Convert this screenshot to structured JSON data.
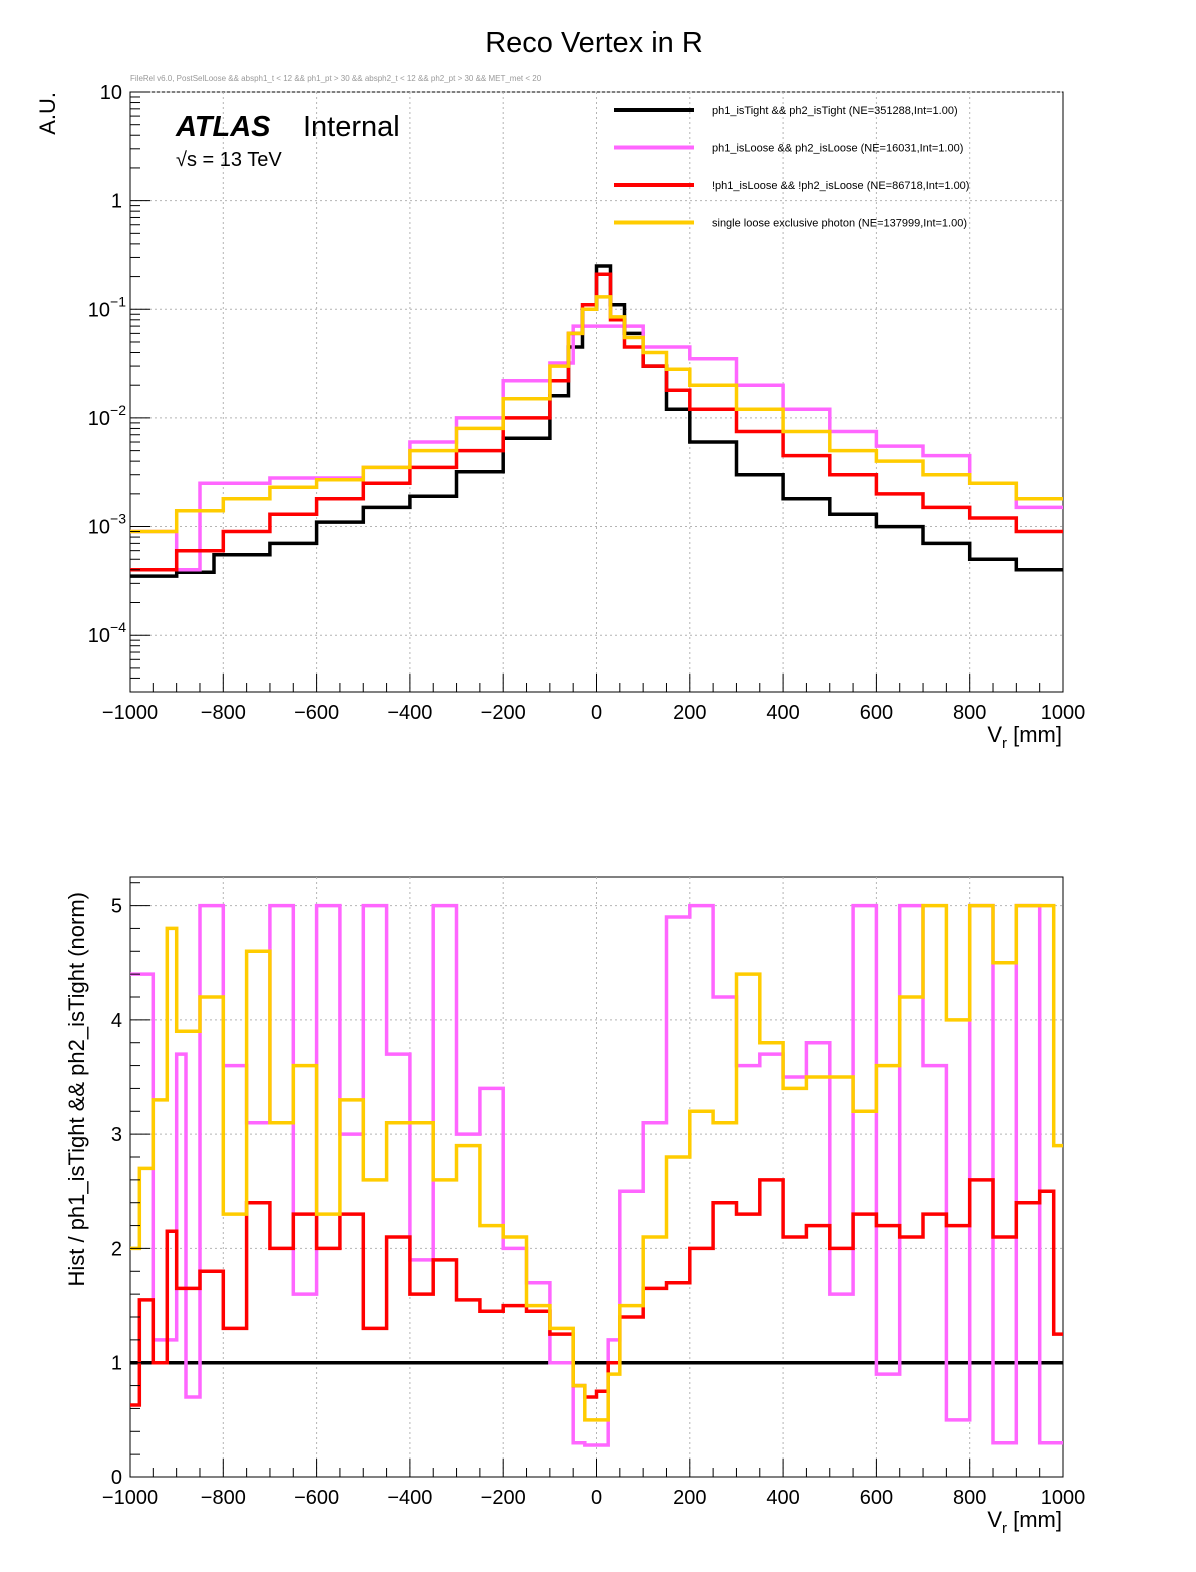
{
  "title": "Reco Vertex in R",
  "selection_note": "FileRel v6.0, PostSelLoose && absph1_t < 12 && ph1_pt > 30 && absph2_t < 12 && ph2_pt > 30 && MET_met < 20",
  "atlas_label": "ATLAS",
  "atlas_status": "Internal",
  "energy_label": "√s = 13 TeV",
  "colors": {
    "tight": "#000000",
    "loose": "#ff66ff",
    "notloose": "#ff0000",
    "single": "#ffcc00"
  },
  "chart_data": [
    {
      "type": "line",
      "scale": "log",
      "title": "Reco Vertex in R",
      "xlabel": "V_r [mm]",
      "ylabel": "A.U.",
      "xlim": [
        -1000,
        1000
      ],
      "ylim": [
        3e-05,
        10
      ],
      "grid": true,
      "legend_position": "top-right",
      "x_ticks": [
        "−1000",
        "−800",
        "−600",
        "−400",
        "−200",
        "0",
        "200",
        "400",
        "600",
        "800",
        "1000"
      ],
      "y_ticks": [
        {
          "base": "10",
          "exp": "−4"
        },
        {
          "base": "10",
          "exp": "−3"
        },
        {
          "base": "10",
          "exp": "−2"
        },
        {
          "base": "10",
          "exp": "−1"
        },
        {
          "base": "1",
          "exp": ""
        },
        {
          "base": "10",
          "exp": ""
        }
      ],
      "series": [
        {
          "name": "ph1_isTight && ph2_isTight (NE=351288,Int=1.00)",
          "color_key": "tight",
          "edges": [
            -1000,
            -900,
            -820,
            -700,
            -600,
            -500,
            -400,
            -300,
            -200,
            -100,
            -60,
            -30,
            0,
            30,
            60,
            100,
            150,
            200,
            300,
            400,
            500,
            600,
            700,
            800,
            900,
            1000
          ],
          "values": [
            0.00035,
            0.00038,
            0.00055,
            0.0007,
            0.0011,
            0.0015,
            0.0019,
            0.0032,
            0.0065,
            0.016,
            0.045,
            0.1,
            0.25,
            0.11,
            0.06,
            0.03,
            0.012,
            0.006,
            0.003,
            0.0018,
            0.0013,
            0.001,
            0.0007,
            0.0005,
            0.0004
          ]
        },
        {
          "name": "ph1_isLoose && ph2_isLoose (NE=16031,Int=1.00)",
          "color_key": "loose",
          "edges": [
            -1000,
            -900,
            -850,
            -700,
            -600,
            -500,
            -400,
            -300,
            -200,
            -100,
            -50,
            50,
            100,
            200,
            300,
            400,
            500,
            600,
            700,
            800,
            900,
            1000
          ],
          "values": [
            0.0009,
            0.0004,
            0.0025,
            0.0028,
            0.0028,
            0.0035,
            0.006,
            0.01,
            0.022,
            0.032,
            0.07,
            0.07,
            0.045,
            0.035,
            0.02,
            0.012,
            0.0075,
            0.0055,
            0.0045,
            0.0025,
            0.0015
          ]
        },
        {
          "name": "!ph1_isLoose && !ph2_isLoose (NE=86718,Int=1.00)",
          "color_key": "notloose",
          "edges": [
            -1000,
            -900,
            -800,
            -700,
            -600,
            -500,
            -400,
            -300,
            -200,
            -100,
            -60,
            -30,
            0,
            30,
            60,
            100,
            150,
            200,
            300,
            400,
            500,
            600,
            700,
            800,
            900,
            1000
          ],
          "values": [
            0.0004,
            0.0006,
            0.0009,
            0.0013,
            0.0018,
            0.0025,
            0.0035,
            0.005,
            0.01,
            0.022,
            0.06,
            0.11,
            0.21,
            0.08,
            0.045,
            0.03,
            0.018,
            0.012,
            0.0075,
            0.0045,
            0.003,
            0.002,
            0.0015,
            0.0012,
            0.0009
          ]
        },
        {
          "name": "single loose exclusive photon (NE=137999,Int=1.00)",
          "color_key": "single",
          "edges": [
            -1000,
            -900,
            -800,
            -700,
            -600,
            -500,
            -400,
            -300,
            -200,
            -100,
            -60,
            -30,
            0,
            30,
            60,
            100,
            150,
            200,
            300,
            400,
            500,
            600,
            700,
            800,
            900,
            1000
          ],
          "values": [
            0.0009,
            0.0014,
            0.0018,
            0.0023,
            0.0027,
            0.0035,
            0.005,
            0.008,
            0.015,
            0.03,
            0.06,
            0.1,
            0.13,
            0.085,
            0.055,
            0.04,
            0.028,
            0.02,
            0.012,
            0.0075,
            0.005,
            0.004,
            0.003,
            0.0025,
            0.0018
          ]
        }
      ]
    },
    {
      "type": "line",
      "xlabel": "V_r [mm]",
      "ylabel": "Hist / ph1_isTight && ph2_isTight (norm)",
      "xlim": [
        -1000,
        1000
      ],
      "ylim": [
        0,
        5.25
      ],
      "grid": true,
      "x_ticks": [
        "−1000",
        "−800",
        "−600",
        "−400",
        "−200",
        "0",
        "200",
        "400",
        "600",
        "800",
        "1000"
      ],
      "y_ticks": [
        "0",
        "1",
        "2",
        "3",
        "4",
        "5"
      ],
      "series": [
        {
          "name": "ph1_isTight && ph2_isTight",
          "color_key": "tight",
          "edges": [
            -1000,
            1000
          ],
          "values": [
            1.0
          ]
        },
        {
          "name": "ph1_isLoose && ph2_isLoose",
          "color_key": "loose",
          "edges": [
            -1000,
            -950,
            -900,
            -880,
            -850,
            -800,
            -750,
            -700,
            -650,
            -600,
            -550,
            -500,
            -450,
            -400,
            -350,
            -300,
            -250,
            -200,
            -150,
            -100,
            -50,
            -25,
            0,
            25,
            50,
            100,
            150,
            200,
            250,
            300,
            350,
            400,
            450,
            500,
            550,
            600,
            650,
            700,
            750,
            800,
            850,
            900,
            950,
            1000
          ],
          "values": [
            4.4,
            1.2,
            3.7,
            0.7,
            5.0,
            3.6,
            3.1,
            5.0,
            1.6,
            5.0,
            3.0,
            5.0,
            3.7,
            1.9,
            5.0,
            3.0,
            3.4,
            2.0,
            1.7,
            1.0,
            0.3,
            0.28,
            0.28,
            1.2,
            2.5,
            3.1,
            4.9,
            5.0,
            4.2,
            3.6,
            3.7,
            3.5,
            3.8,
            1.6,
            5.0,
            0.9,
            5.0,
            3.6,
            0.5,
            5.0,
            0.3,
            5.0,
            0.3
          ]
        },
        {
          "name": "!ph1_isLoose && !ph2_isLoose",
          "color_key": "notloose",
          "edges": [
            -1000,
            -980,
            -950,
            -920,
            -900,
            -850,
            -800,
            -750,
            -700,
            -650,
            -600,
            -550,
            -500,
            -450,
            -400,
            -350,
            -300,
            -250,
            -200,
            -150,
            -100,
            -50,
            -25,
            0,
            25,
            50,
            100,
            150,
            200,
            250,
            300,
            350,
            400,
            450,
            500,
            550,
            600,
            650,
            700,
            750,
            800,
            850,
            900,
            950,
            980,
            1000
          ],
          "values": [
            0.63,
            1.55,
            1.0,
            2.15,
            1.65,
            1.8,
            1.3,
            2.4,
            2.0,
            2.3,
            2.0,
            2.3,
            1.3,
            2.1,
            1.6,
            1.9,
            1.55,
            1.45,
            1.5,
            1.45,
            1.25,
            0.8,
            0.7,
            0.75,
            1.0,
            1.4,
            1.65,
            1.7,
            2.0,
            2.4,
            2.3,
            2.6,
            2.1,
            2.2,
            2.0,
            2.3,
            2.2,
            2.1,
            2.3,
            2.2,
            2.6,
            2.1,
            2.4,
            2.5,
            1.25
          ]
        },
        {
          "name": "single loose exclusive photon",
          "color_key": "single",
          "edges": [
            -1000,
            -980,
            -950,
            -920,
            -900,
            -850,
            -800,
            -750,
            -700,
            -650,
            -600,
            -550,
            -500,
            -450,
            -400,
            -350,
            -300,
            -250,
            -200,
            -150,
            -100,
            -50,
            -25,
            0,
            25,
            50,
            100,
            150,
            200,
            250,
            300,
            350,
            400,
            450,
            500,
            550,
            600,
            650,
            700,
            750,
            800,
            850,
            900,
            950,
            980,
            1000
          ],
          "values": [
            2.0,
            2.7,
            3.3,
            4.8,
            3.9,
            4.2,
            2.3,
            4.6,
            3.1,
            3.6,
            2.3,
            3.3,
            2.6,
            3.1,
            3.1,
            2.6,
            2.9,
            2.2,
            2.1,
            1.5,
            1.3,
            0.8,
            0.5,
            0.5,
            0.9,
            1.5,
            2.1,
            2.8,
            3.2,
            3.1,
            4.4,
            3.8,
            3.4,
            3.5,
            3.5,
            3.2,
            3.6,
            4.2,
            5.0,
            4.0,
            5.0,
            4.5,
            5.0,
            5.0,
            2.9
          ]
        }
      ]
    }
  ]
}
